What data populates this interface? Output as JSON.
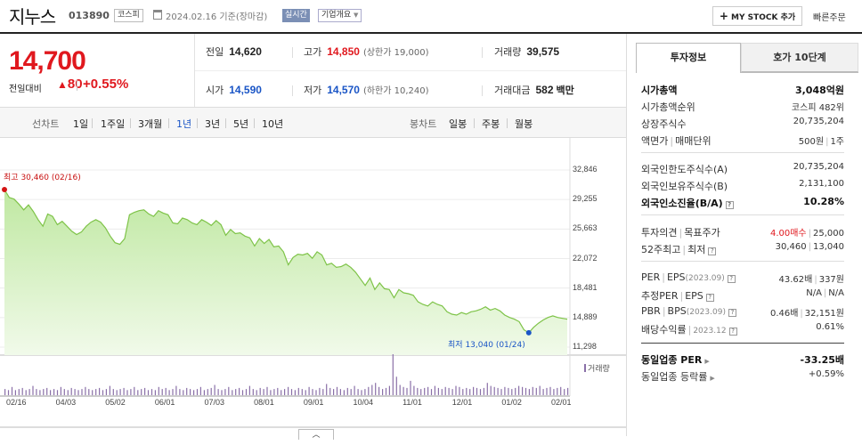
{
  "header": {
    "stock_name": "지누스",
    "stock_code": "013890",
    "market": "코스피",
    "date_text": "2024.02.16  기준(장마감)",
    "realtime_label": "실시간",
    "company_info_label": "기업개요",
    "mystock_label": "MY STOCK 추가",
    "quick_order_label": "빠른주문"
  },
  "price": {
    "current": "14,700",
    "change_label": "전일대비",
    "change_value": "80",
    "change_pct": "+0.55%"
  },
  "quotes": {
    "prev_close_label": "전일",
    "prev_close": "14,620",
    "high_label": "고가",
    "high": "14,850",
    "upper_limit": "(상한가 19,000)",
    "volume_label": "거래량",
    "volume": "39,575",
    "open_label": "시가",
    "open": "14,590",
    "low_label": "저가",
    "low": "14,570",
    "lower_limit": "(하한가 10,240)",
    "amount_label": "거래대금",
    "amount": "582",
    "amount_unit": "백만"
  },
  "toolbar": {
    "line_chart_label": "선차트",
    "periods": [
      "1일",
      "1주일",
      "3개월",
      "1년",
      "3년",
      "5년",
      "10년"
    ],
    "active_period": "1년",
    "candle_chart_label": "봉차트",
    "candle_periods": [
      "일봉",
      "주봉",
      "월봉"
    ]
  },
  "chart_data": {
    "type": "area",
    "title": "",
    "xlabel": "",
    "ylabel": "",
    "x_tick_labels": [
      "02/16",
      "04/03",
      "05/02",
      "06/01",
      "07/03",
      "08/01",
      "09/01",
      "10/04",
      "11/01",
      "12/01",
      "01/02",
      "02/01"
    ],
    "y_tick_labels": [
      "32,846",
      "29,255",
      "25,663",
      "22,072",
      "18,481",
      "14,889",
      "11,298"
    ],
    "ylim": [
      11298,
      32846
    ],
    "series": [
      {
        "values": [
          30460,
          29500,
          29300,
          28700,
          28000,
          28600,
          27800,
          26800,
          26000,
          27500,
          27200,
          26200,
          26600,
          26000,
          25400,
          25000,
          25300,
          26000,
          26500,
          26800,
          26500,
          25800,
          24800,
          24000,
          23800,
          24500,
          27400,
          27700,
          27900,
          28000,
          27500,
          27200,
          27900,
          27600,
          27400,
          26400,
          26300,
          27000,
          26800,
          26400,
          26200,
          26800,
          26500,
          26100,
          26700,
          26200,
          24900,
          25600,
          25100,
          25200,
          24800,
          24600,
          23600,
          24500,
          23900,
          24400,
          23500,
          23600,
          22900,
          21300,
          22200,
          22600,
          22500,
          22700,
          22100,
          22900,
          22500,
          21300,
          21500,
          21000,
          21100,
          21400,
          21000,
          20400,
          19600,
          18800,
          19700,
          18300,
          19100,
          18400,
          18300,
          17300,
          18300,
          17900,
          17800,
          17600,
          16800,
          16500,
          16300,
          16800,
          16500,
          16300,
          15600,
          15300,
          15200,
          15500,
          15300,
          15600,
          15700,
          15900,
          16200,
          15800,
          16000,
          15700,
          15200,
          14900,
          14700,
          14400,
          13400,
          13040,
          13700,
          14200,
          14600,
          14900,
          15100,
          14900,
          14800,
          14700
        ]
      }
    ],
    "volume": [
      6,
      5,
      8,
      5,
      6,
      7,
      5,
      6,
      9,
      6,
      5,
      6,
      7,
      5,
      6,
      5,
      8,
      6,
      5,
      7,
      6,
      5,
      6,
      8,
      6,
      5,
      6,
      7,
      5,
      6,
      9,
      6,
      5,
      6,
      7,
      5,
      6,
      8,
      5,
      6,
      7,
      5,
      6,
      5,
      8,
      6,
      7,
      5,
      6,
      9,
      6,
      5,
      7,
      6,
      5,
      6,
      8,
      5,
      6,
      7,
      10,
      6,
      5,
      6,
      8,
      5,
      6,
      7,
      5,
      6,
      9,
      6,
      5,
      7,
      6,
      8,
      5,
      6,
      7,
      5,
      6,
      8,
      6,
      5,
      7,
      6,
      5,
      8,
      6,
      5,
      7,
      6,
      11,
      7,
      6,
      8,
      6,
      5,
      7,
      6,
      9,
      6,
      5,
      6,
      8,
      10,
      12,
      8,
      6,
      7,
      9,
      40,
      18,
      10,
      8,
      7,
      14,
      9,
      7,
      6,
      7,
      8,
      6,
      9,
      7,
      6,
      8,
      7,
      6,
      9,
      8,
      6,
      7,
      6,
      8,
      7,
      6,
      7,
      12,
      9,
      8,
      7,
      6,
      8,
      7,
      6,
      7,
      9,
      8,
      7,
      6,
      8,
      7,
      9,
      6,
      7,
      8,
      6,
      7,
      8,
      6,
      7
    ],
    "max_annotation": {
      "label": "최고",
      "value": "30,460",
      "date": "(02/16)"
    },
    "min_annotation": {
      "label": "최저",
      "value": "13,040",
      "date": "(01/24)"
    },
    "volume_legend": "거래량",
    "colors": {
      "line": "#7ec348",
      "fill_top": "#bfe8a1",
      "fill_bottom": "#f1faea",
      "volume": "#8a70a8",
      "max": "#d41414",
      "min": "#1a55c6"
    },
    "grid": true
  },
  "right_panel": {
    "tab_invest": "투자정보",
    "tab_hoga": "호가 10단계",
    "market_cap_label": "시가총액",
    "market_cap": "3,048억원",
    "market_cap_rank_label": "시가총액순위",
    "market_cap_rank": "코스피 482위",
    "listed_shares_label": "상장주식수",
    "listed_shares": "20,735,204",
    "par_value_label": "액면가",
    "trade_unit_label": "매매단위",
    "par_value": "500원",
    "trade_unit": "1주",
    "foreign_limit_label": "외국인한도주식수(A)",
    "foreign_limit": "20,735,204",
    "foreign_holding_label": "외국인보유주식수(B)",
    "foreign_holding": "2,131,100",
    "foreign_exhaust_label": "외국인소진율(B/A)",
    "foreign_exhaust": "10.28%",
    "opinion_label": "투자의견",
    "target_label": "목표주가",
    "opinion": "4.00매수",
    "target": "25,000",
    "week52_high_label": "52주최고",
    "week52_low_label": "최저",
    "week52_high": "30,460",
    "week52_low": "13,040",
    "per_label": "PER",
    "eps_label": "EPS",
    "eps_period": "(2023.09)",
    "per": "43.62배",
    "eps": "337원",
    "est_per_label": "추정PER",
    "est_eps_label": "EPS",
    "est_per": "N/A",
    "est_eps": "N/A",
    "pbr_label": "PBR",
    "bps_label": "BPS",
    "bps_period": "(2023.09)",
    "pbr": "0.46배",
    "bps": "32,151원",
    "div_label": "배당수익률",
    "div_period": "2023.12",
    "div": "0.61%",
    "ind_per_label": "동일업종 PER",
    "ind_per": "-33.25배",
    "ind_rate_label": "동일업종 등락률",
    "ind_rate": "+0.59%"
  }
}
